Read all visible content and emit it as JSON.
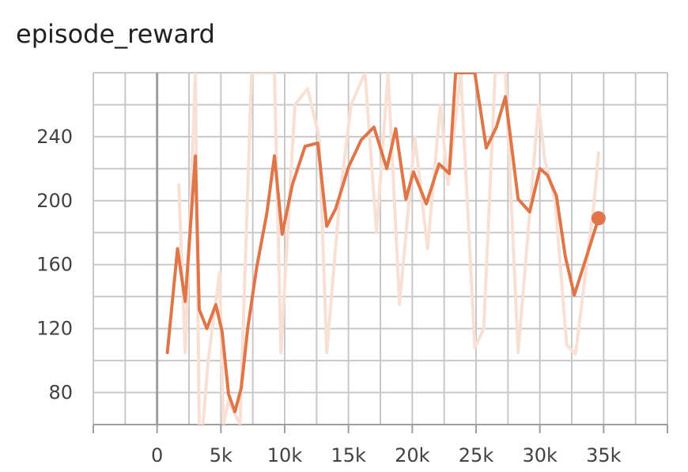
{
  "chart_data": {
    "type": "line",
    "title": "episode_reward",
    "xlabel": "",
    "ylabel": "",
    "xlim": [
      -5000,
      40000
    ],
    "ylim": [
      60,
      280
    ],
    "x_ticks": [
      0,
      5000,
      10000,
      15000,
      20000,
      25000,
      30000,
      35000
    ],
    "x_tick_labels": [
      "0",
      "5k",
      "10k",
      "15k",
      "20k",
      "25k",
      "30k",
      "35k"
    ],
    "y_ticks": [
      80,
      120,
      160,
      200,
      240
    ],
    "y_tick_labels": [
      "80",
      "120",
      "160",
      "200",
      "240"
    ],
    "grid": true,
    "colors": {
      "smoothed": "#e07548",
      "raw": "#f9e0d5",
      "grid": "#c8c8c8",
      "zero_line": "#9e9e9e"
    },
    "series": [
      {
        "role": "raw",
        "x": [
          1700,
          2200,
          3000,
          3300,
          3600,
          4000,
          4900,
          5200,
          5600,
          6500,
          7400,
          8100,
          9200,
          9700,
          10800,
          11800,
          12700,
          13300,
          14300,
          15200,
          16300,
          17200,
          18100,
          19000,
          20200,
          21200,
          22200,
          22800,
          23800,
          24900,
          25600,
          26500,
          27300,
          28300,
          29900,
          30400,
          31200,
          32100,
          32800,
          34200,
          34600
        ],
        "y": [
          210,
          105,
          280,
          60,
          60,
          100,
          155,
          60,
          75,
          60,
          280,
          280,
          280,
          105,
          260,
          270,
          240,
          105,
          200,
          260,
          280,
          180,
          280,
          135,
          240,
          170,
          260,
          210,
          280,
          108,
          120,
          280,
          280,
          105,
          260,
          225,
          200,
          110,
          104,
          195,
          230
        ]
      },
      {
        "role": "smoothed",
        "x": [
          800,
          1600,
          2200,
          3000,
          3300,
          3900,
          4600,
          5100,
          5600,
          6100,
          6600,
          7100,
          7800,
          8600,
          9200,
          9800,
          10600,
          11600,
          12600,
          13300,
          14000,
          15000,
          16000,
          17000,
          18000,
          18700,
          19500,
          20100,
          21100,
          22100,
          22900,
          23400,
          24900,
          25800,
          26600,
          27300,
          28300,
          29200,
          30000,
          30600,
          31300,
          32000,
          32700,
          33500,
          34600
        ],
        "y": [
          105,
          170,
          137,
          228,
          132,
          120,
          135,
          118,
          79,
          68,
          83,
          120,
          158,
          192,
          228,
          179,
          210,
          234,
          236,
          184,
          195,
          221,
          238,
          246,
          220,
          245,
          201,
          218,
          198,
          223,
          217,
          280,
          280,
          233,
          246,
          265,
          201,
          193,
          220,
          216,
          203,
          165,
          141,
          161,
          189
        ]
      }
    ]
  }
}
